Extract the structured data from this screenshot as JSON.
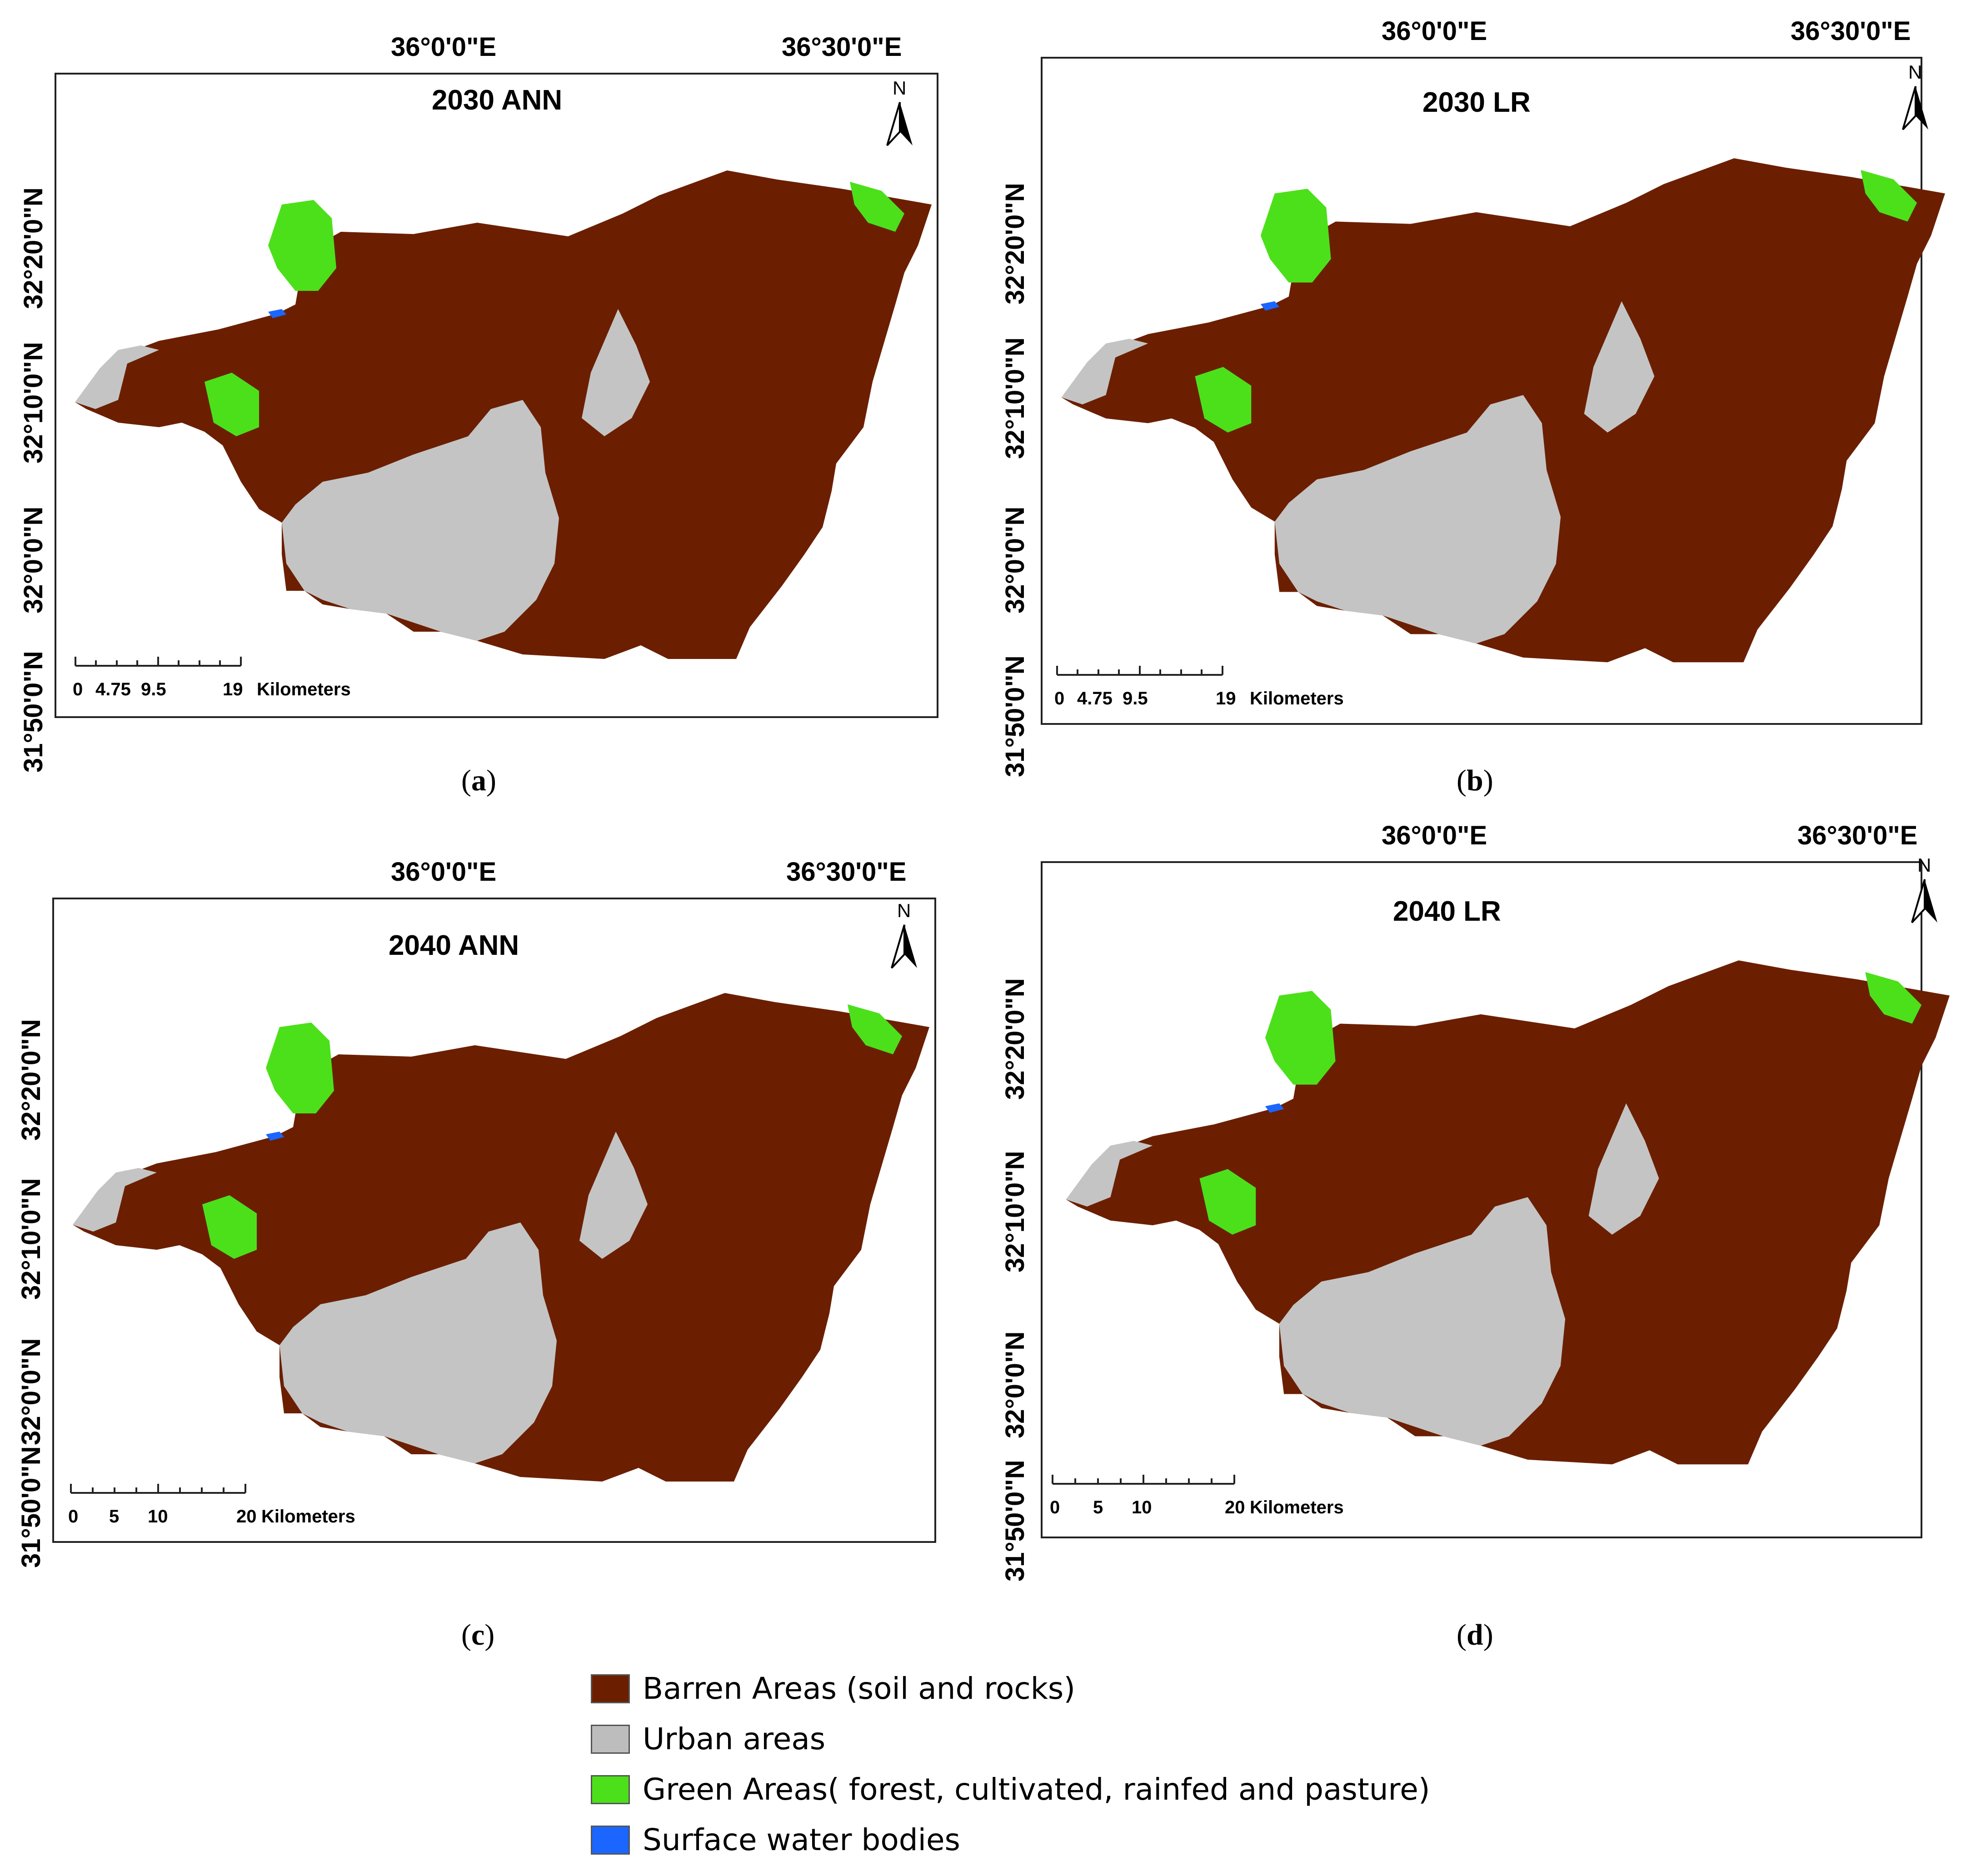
{
  "panels": [
    {
      "id": "a",
      "title": "2030 ANN",
      "caption_letter": "a",
      "lon_labels": [
        "36°0'0\"E",
        "36°30'0\"E"
      ],
      "lat_labels": [
        "32°20'0\"N",
        "32°10'0\"N",
        "32°0'0\"N",
        "31°50'0\"N"
      ],
      "north_label": "N",
      "scale_labels": [
        "0",
        "4.75",
        "9.5",
        "19",
        "Kilometers"
      ]
    },
    {
      "id": "b",
      "title": "2030 LR",
      "caption_letter": "b",
      "lon_labels": [
        "36°0'0\"E",
        "36°30'0\"E"
      ],
      "lat_labels": [
        "32°20'0\"N",
        "32°10'0\"N",
        "32°0'0\"N",
        "31°50'0\"N"
      ],
      "north_label": "N",
      "scale_labels": [
        "0",
        "4.75",
        "9.5",
        "19",
        "Kilometers"
      ]
    },
    {
      "id": "c",
      "title": "2040 ANN",
      "caption_letter": "c",
      "lon_labels": [
        "36°0'0\"E",
        "36°30'0\"E"
      ],
      "lat_labels": [
        "32°20'0\"N",
        "32°10'0\"N",
        "32°0'0\"N",
        "31°50'0\"N"
      ],
      "north_label": "N",
      "scale_labels": [
        "0",
        "5",
        "10",
        "20",
        "Kilometers"
      ]
    },
    {
      "id": "d",
      "title": "2040 LR",
      "caption_letter": "d",
      "lon_labels": [
        "36°0'0\"E",
        "36°30'0\"E"
      ],
      "lat_labels": [
        "32°20'0\"N",
        "32°10'0\"N",
        "32°0'0\"N",
        "31°50'0\"N"
      ],
      "north_label": "N",
      "scale_labels": [
        "0",
        "5",
        "10",
        "20",
        "Kilometers"
      ]
    }
  ],
  "legend": [
    {
      "label": "Barren Areas (soil and rocks)",
      "color": "#6b1f00"
    },
    {
      "label": "Urban areas",
      "color": "#bdbdbd"
    },
    {
      "label": "Green Areas( forest, cultivated, rainfed and pasture)",
      "color": "#4ce01a"
    },
    {
      "label": "Surface water bodies",
      "color": "#1a66ff"
    }
  ],
  "colors": {
    "barren": "#6b1f00",
    "urban": "#c4c4c4",
    "green": "#4ce01a",
    "water": "#1a66ff"
  }
}
